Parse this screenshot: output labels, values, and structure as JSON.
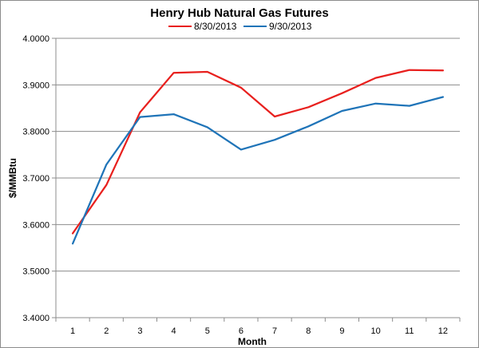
{
  "chart_data": {
    "type": "line",
    "title": "Henry Hub Natural Gas Futures",
    "xlabel": "Month",
    "ylabel": "$/MMBtu",
    "x": [
      1,
      2,
      3,
      4,
      5,
      6,
      7,
      8,
      9,
      10,
      11,
      12
    ],
    "x_tick_labels": [
      "1",
      "2",
      "3",
      "4",
      "5",
      "6",
      "7",
      "8",
      "9",
      "10",
      "11",
      "12"
    ],
    "ylim": [
      3.4,
      4.0
    ],
    "y_tick_labels": [
      "3.4000",
      "3.5000",
      "3.6000",
      "3.7000",
      "3.8000",
      "3.9000",
      "4.0000"
    ],
    "grid": "horizontal",
    "legend_position": "top",
    "series": [
      {
        "name": "8/30/2013",
        "color": "#e8201e",
        "values": [
          3.581,
          3.685,
          3.841,
          3.926,
          3.928,
          3.894,
          3.832,
          3.852,
          3.882,
          3.915,
          3.932,
          3.931
        ]
      },
      {
        "name": "9/30/2013",
        "color": "#1f74b8",
        "values": [
          3.559,
          3.729,
          3.831,
          3.837,
          3.809,
          3.761,
          3.782,
          3.811,
          3.844,
          3.86,
          3.855,
          3.874
        ]
      }
    ]
  }
}
